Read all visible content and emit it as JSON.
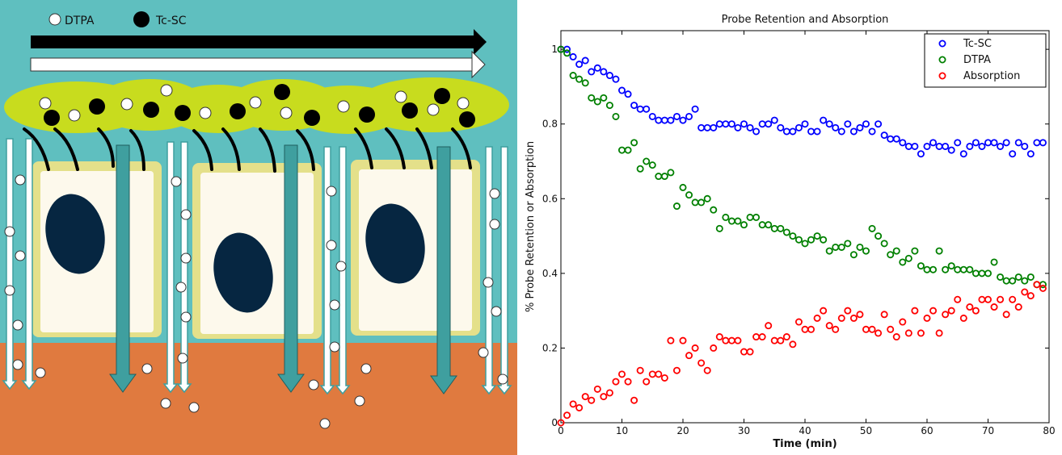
{
  "diagram": {
    "legend": [
      {
        "label": "DTPA",
        "symbol": "open-circle"
      },
      {
        "label": "Tc-SC",
        "symbol": "filled-circle"
      }
    ],
    "colors": {
      "lumen": "#5fbfbf",
      "mucus": "#c8dc1e",
      "cell_border": "#e4e08a",
      "cell_body": "#fdf9ec",
      "nucleus": "#062641",
      "submucosa": "#e07a3f",
      "arrow_teal": "#3f9f9f",
      "arrow_black": "#000000",
      "arrow_white": "#ffffff"
    }
  },
  "chart_data": {
    "type": "scatter",
    "title": "Probe Retention and Absorption",
    "xlabel": "Time (min)",
    "ylabel": "% Probe Retention or Absorption",
    "xlim": [
      0,
      80
    ],
    "ylim": [
      0,
      1.05
    ],
    "xticks": [
      0,
      10,
      20,
      30,
      40,
      50,
      60,
      70,
      80
    ],
    "yticks": [
      0,
      0.2,
      0.4,
      0.6,
      0.8,
      1
    ],
    "ytick_labels": [
      "0",
      "0.2",
      "0.4",
      "0.6",
      "0.8",
      "1"
    ],
    "legend_position": "top-right",
    "grid": false,
    "series": [
      {
        "name": "Tc-SC",
        "color": "#0000ff",
        "marker": "open-circle",
        "x": [
          0,
          1,
          2,
          3,
          4,
          5,
          6,
          7,
          8,
          9,
          10,
          11,
          12,
          13,
          14,
          15,
          16,
          17,
          18,
          19,
          20,
          21,
          22,
          23,
          24,
          25,
          26,
          27,
          28,
          29,
          30,
          31,
          32,
          33,
          34,
          35,
          36,
          37,
          38,
          39,
          40,
          41,
          42,
          43,
          44,
          45,
          46,
          47,
          48,
          49,
          50,
          51,
          52,
          53,
          54,
          55,
          56,
          57,
          58,
          59,
          60,
          61,
          62,
          63,
          64,
          65,
          66,
          67,
          68,
          69,
          70,
          71,
          72,
          73,
          74,
          75,
          76,
          77,
          78,
          79
        ],
        "y": [
          1.0,
          1.0,
          0.98,
          0.96,
          0.97,
          0.94,
          0.95,
          0.94,
          0.93,
          0.92,
          0.89,
          0.88,
          0.85,
          0.84,
          0.84,
          0.82,
          0.81,
          0.81,
          0.81,
          0.82,
          0.81,
          0.82,
          0.84,
          0.79,
          0.79,
          0.79,
          0.8,
          0.8,
          0.8,
          0.79,
          0.8,
          0.79,
          0.78,
          0.8,
          0.8,
          0.81,
          0.79,
          0.78,
          0.78,
          0.79,
          0.8,
          0.78,
          0.78,
          0.81,
          0.8,
          0.79,
          0.78,
          0.8,
          0.78,
          0.79,
          0.8,
          0.78,
          0.8,
          0.77,
          0.76,
          0.76,
          0.75,
          0.74,
          0.74,
          0.72,
          0.74,
          0.75,
          0.74,
          0.74,
          0.73,
          0.75,
          0.72,
          0.74,
          0.75,
          0.74,
          0.75,
          0.75,
          0.74,
          0.75,
          0.72,
          0.75,
          0.74,
          0.72,
          0.75,
          0.75
        ]
      },
      {
        "name": "DTPA",
        "color": "#008000",
        "marker": "open-circle",
        "x": [
          0,
          1,
          2,
          3,
          4,
          5,
          6,
          7,
          8,
          9,
          10,
          11,
          12,
          13,
          14,
          15,
          16,
          17,
          18,
          19,
          20,
          21,
          22,
          23,
          24,
          25,
          26,
          27,
          28,
          29,
          30,
          31,
          32,
          33,
          34,
          35,
          36,
          37,
          38,
          39,
          40,
          41,
          42,
          43,
          44,
          45,
          46,
          47,
          48,
          49,
          50,
          51,
          52,
          53,
          54,
          55,
          56,
          57,
          58,
          59,
          60,
          61,
          62,
          63,
          64,
          65,
          66,
          67,
          68,
          69,
          70,
          71,
          72,
          73,
          74,
          75,
          76,
          77,
          78,
          79
        ],
        "y": [
          1.0,
          0.99,
          0.93,
          0.92,
          0.91,
          0.87,
          0.86,
          0.87,
          0.85,
          0.82,
          0.73,
          0.73,
          0.75,
          0.68,
          0.7,
          0.69,
          0.66,
          0.66,
          0.67,
          0.58,
          0.63,
          0.61,
          0.59,
          0.59,
          0.6,
          0.57,
          0.52,
          0.55,
          0.54,
          0.54,
          0.53,
          0.55,
          0.55,
          0.53,
          0.53,
          0.52,
          0.52,
          0.51,
          0.5,
          0.49,
          0.48,
          0.49,
          0.5,
          0.49,
          0.46,
          0.47,
          0.47,
          0.48,
          0.45,
          0.47,
          0.46,
          0.52,
          0.5,
          0.48,
          0.45,
          0.46,
          0.43,
          0.44,
          0.46,
          0.42,
          0.41,
          0.41,
          0.46,
          0.41,
          0.42,
          0.41,
          0.41,
          0.41,
          0.4,
          0.4,
          0.4,
          0.43,
          0.39,
          0.38,
          0.38,
          0.39,
          0.38,
          0.39,
          0.37,
          0.37
        ]
      },
      {
        "name": "Absorption",
        "color": "#ff0000",
        "marker": "open-circle",
        "x": [
          0,
          1,
          2,
          3,
          4,
          5,
          6,
          7,
          8,
          9,
          10,
          11,
          12,
          13,
          14,
          15,
          16,
          17,
          18,
          19,
          20,
          21,
          22,
          23,
          24,
          25,
          26,
          27,
          28,
          29,
          30,
          31,
          32,
          33,
          34,
          35,
          36,
          37,
          38,
          39,
          40,
          41,
          42,
          43,
          44,
          45,
          46,
          47,
          48,
          49,
          50,
          51,
          52,
          53,
          54,
          55,
          56,
          57,
          58,
          59,
          60,
          61,
          62,
          63,
          64,
          65,
          66,
          67,
          68,
          69,
          70,
          71,
          72,
          73,
          74,
          75,
          76,
          77,
          78,
          79
        ],
        "y": [
          0.0,
          0.02,
          0.05,
          0.04,
          0.07,
          0.06,
          0.09,
          0.07,
          0.08,
          0.11,
          0.13,
          0.11,
          0.06,
          0.14,
          0.11,
          0.13,
          0.13,
          0.12,
          0.22,
          0.14,
          0.22,
          0.18,
          0.2,
          0.16,
          0.14,
          0.2,
          0.23,
          0.22,
          0.22,
          0.22,
          0.19,
          0.19,
          0.23,
          0.23,
          0.26,
          0.22,
          0.22,
          0.23,
          0.21,
          0.27,
          0.25,
          0.25,
          0.28,
          0.3,
          0.26,
          0.25,
          0.28,
          0.3,
          0.28,
          0.29,
          0.25,
          0.25,
          0.24,
          0.29,
          0.25,
          0.23,
          0.27,
          0.24,
          0.3,
          0.24,
          0.28,
          0.3,
          0.24,
          0.29,
          0.3,
          0.33,
          0.28,
          0.31,
          0.3,
          0.33,
          0.33,
          0.31,
          0.33,
          0.29,
          0.33,
          0.31,
          0.35,
          0.34,
          0.37,
          0.36
        ]
      }
    ]
  }
}
